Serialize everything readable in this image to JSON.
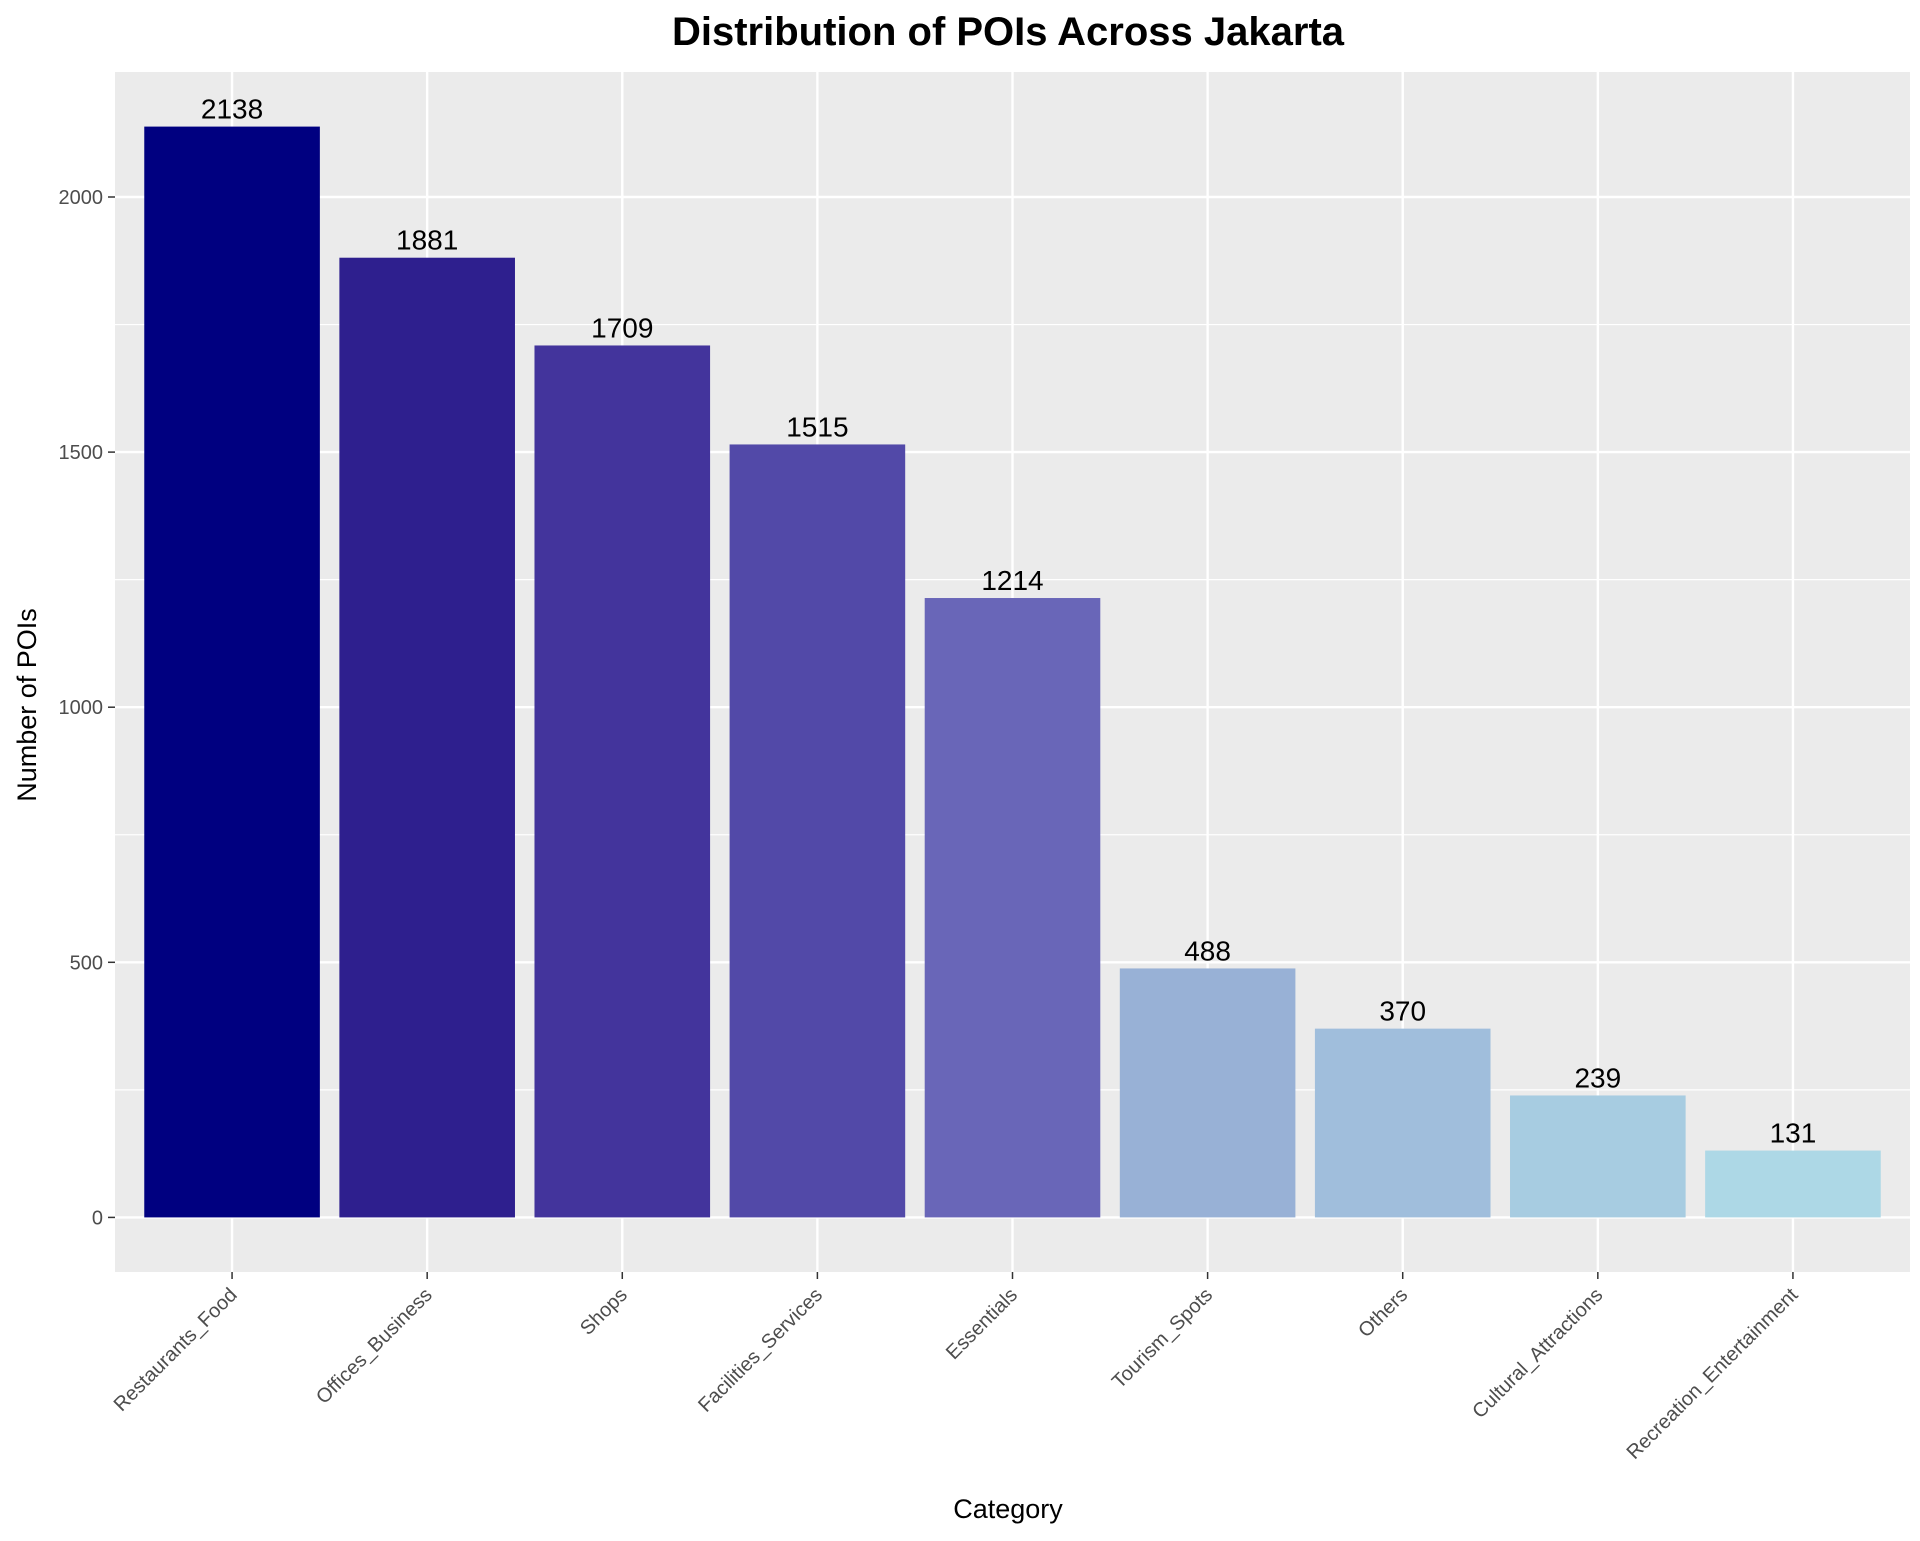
{
  "chart_data": {
    "type": "bar",
    "title": "Distribution of POIs Across Jakarta",
    "xlabel": "Category",
    "ylabel": "Number of POIs",
    "categories": [
      "Restaurants_Food",
      "Offices_Business",
      "Shops",
      "Facilities_Services",
      "Essentials",
      "Tourism_Spots",
      "Others",
      "Cultural_Attractions",
      "Recreation_Entertainment"
    ],
    "values": [
      2138,
      1881,
      1709,
      1515,
      1214,
      488,
      370,
      239,
      131
    ],
    "data_labels": [
      "2138",
      "1881",
      "1709",
      "1515",
      "1214",
      "488",
      "370",
      "239",
      "131"
    ],
    "colors": [
      "#000080",
      "#2e1f8e",
      "#43349c",
      "#5249a8",
      "#6966b8",
      "#98b1d6",
      "#a0bedc",
      "#a7cce1",
      "#add8e6"
    ],
    "ylim": [
      -107,
      2245
    ],
    "yticks": [
      0,
      500,
      1000,
      1500,
      2000
    ],
    "ytick_labels": [
      "0",
      "500",
      "1000",
      "1500",
      "2000"
    ],
    "panel_color": "#ebebeb",
    "grid_color": "#ffffff",
    "grid": true,
    "legend": "none"
  }
}
